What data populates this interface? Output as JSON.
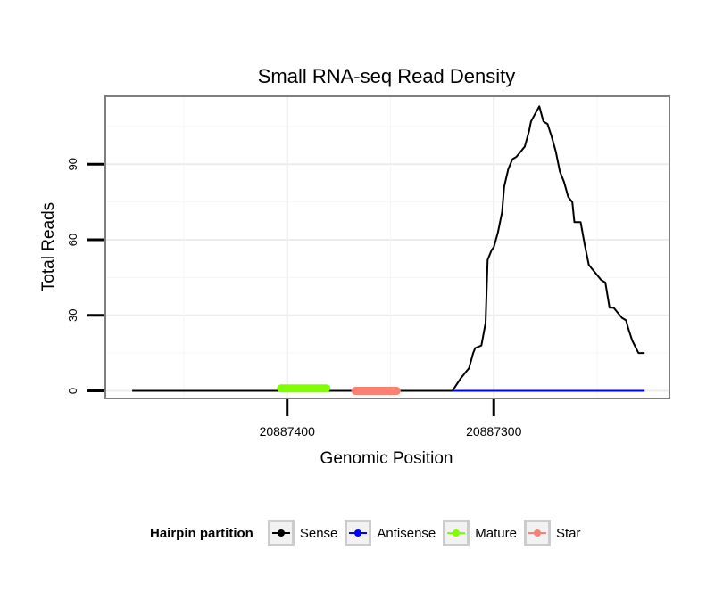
{
  "chart_data": {
    "type": "line",
    "title": "Small RNA-seq Read Density",
    "xlabel": "Genomic Position",
    "ylabel": "Total Reads",
    "x_reversed": true,
    "xlim": [
      20887488,
      20887215
    ],
    "ylim": [
      -3,
      117
    ],
    "xticks": [
      20887400,
      20887300
    ],
    "xtick_labels": [
      "20887400",
      "20887300"
    ],
    "yticks": [
      0,
      30,
      60,
      90
    ],
    "ytick_labels": [
      "0",
      "30",
      "60",
      "90"
    ],
    "grid": true,
    "legend": {
      "title": "Hairpin partition",
      "placement": "bottom",
      "entries": [
        {
          "label": "Sense",
          "color": "#000000"
        },
        {
          "label": "Antisense",
          "color": "#0000ff"
        },
        {
          "label": "Mature",
          "color": "#7fff00"
        },
        {
          "label": "Star",
          "color": "#fa8072"
        }
      ]
    },
    "series": [
      {
        "name": "Sense",
        "color": "#000000",
        "x": [
          20887475,
          20887320,
          20887316,
          20887314,
          20887312,
          20887310,
          20887309,
          20887306,
          20887304,
          20887303,
          20887301,
          20887300,
          20887298,
          20887296,
          20887295,
          20887293,
          20887291,
          20887289,
          20887287,
          20887285,
          20887283,
          20887282,
          20887280,
          20887278,
          20887276,
          20887274,
          20887272,
          20887270,
          20887268,
          20887266,
          20887264,
          20887262,
          20887261,
          20887258,
          20887256,
          20887254,
          20887252,
          20887250,
          20887248,
          20887246,
          20887244,
          20887242,
          20887240,
          20887238,
          20887236,
          20887235,
          20887233,
          20887230,
          20887227
        ],
        "y": [
          0,
          0,
          5,
          7,
          9,
          15,
          17,
          18,
          27,
          52,
          56,
          57,
          63,
          71,
          81,
          88,
          92,
          93,
          95,
          97,
          103,
          107,
          110,
          113,
          107,
          106,
          101,
          95,
          87,
          83,
          77,
          75,
          67,
          67,
          58,
          50,
          48,
          46,
          44,
          43,
          33,
          33,
          31,
          29,
          28,
          25,
          20,
          15,
          15
        ]
      },
      {
        "name": "Antisense",
        "color": "#0000ff",
        "x": [
          20887320,
          20887227
        ],
        "y": [
          0,
          0
        ]
      },
      {
        "name": "Mature",
        "color": "#7fff00",
        "x": [
          20887403,
          20887381
        ],
        "y": [
          1,
          1
        ]
      },
      {
        "name": "Star",
        "color": "#fa8072",
        "x": [
          20887367,
          20887347
        ],
        "y": [
          0,
          0
        ]
      }
    ]
  }
}
